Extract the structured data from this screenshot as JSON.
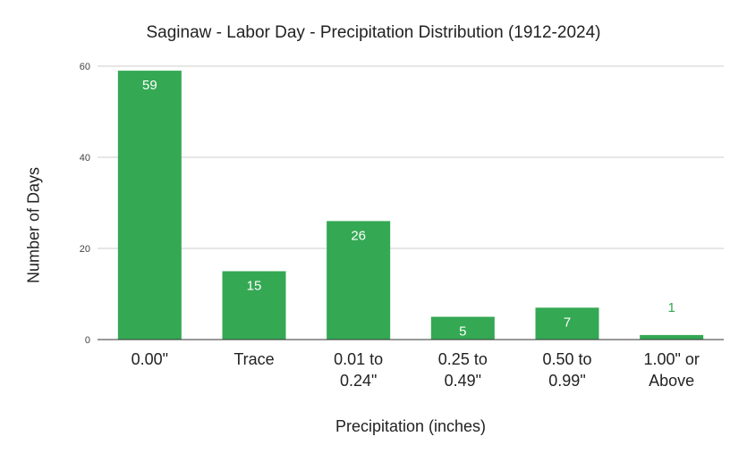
{
  "chart_data": {
    "type": "bar",
    "title": "Saginaw - Labor Day - Precipitation Distribution (1912-2024)",
    "xlabel": "Precipitation (inches)",
    "ylabel": "Number of Days",
    "categories": [
      [
        "0.00\""
      ],
      [
        "Trace"
      ],
      [
        "0.01 to",
        "0.24\""
      ],
      [
        "0.25 to",
        "0.49\""
      ],
      [
        "0.50 to",
        "0.99\""
      ],
      [
        "1.00\" or",
        "Above"
      ]
    ],
    "values": [
      59,
      15,
      26,
      5,
      7,
      1
    ],
    "ylim": [
      0,
      60
    ],
    "yticks": [
      0,
      20,
      40,
      60
    ],
    "grid": true,
    "colors": {
      "bar": "#34a853",
      "label_inside": "#ffffff",
      "label_outside": "#34a853",
      "grid": "#cccccc",
      "axis": "#333333"
    }
  }
}
